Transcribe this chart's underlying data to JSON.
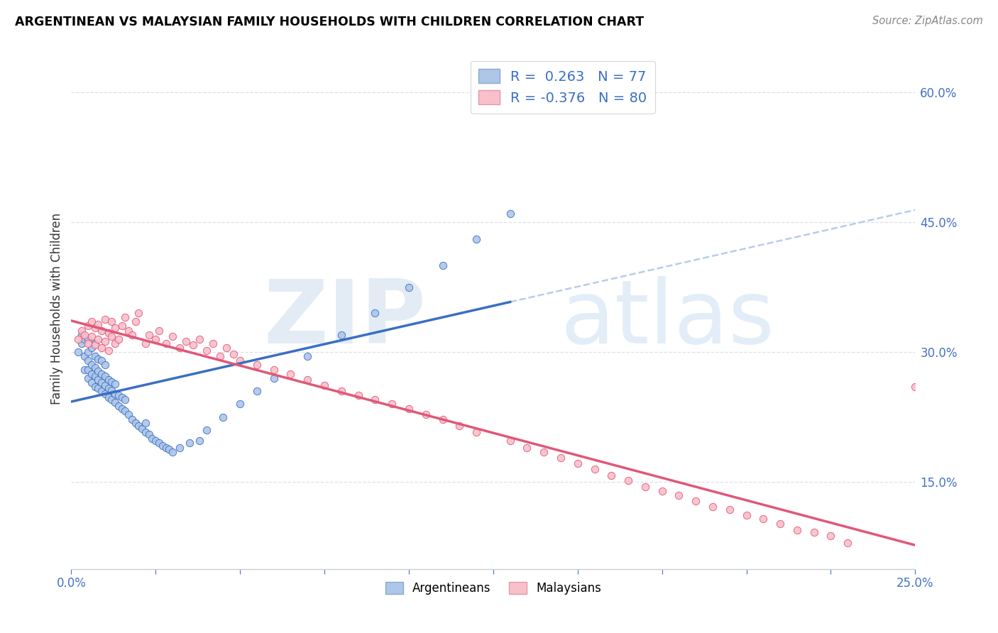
{
  "title": "ARGENTINEAN VS MALAYSIAN FAMILY HOUSEHOLDS WITH CHILDREN CORRELATION CHART",
  "source": "Source: ZipAtlas.com",
  "ylabel": "Family Households with Children",
  "xlim": [
    0.0,
    0.25
  ],
  "ylim": [
    0.05,
    0.65
  ],
  "R_argentinean": 0.263,
  "N_argentinean": 77,
  "R_malaysian": -0.376,
  "N_malaysian": 80,
  "color_argentinean": "#aec6e8",
  "color_malaysian": "#f9bfca",
  "line_color_argentinean": "#3a6fc4",
  "line_color_malaysian": "#e05878",
  "dashed_color": "#9bb8d8",
  "watermark_zip": "ZIP",
  "watermark_atlas": "atlas",
  "argentinean_x": [
    0.002,
    0.003,
    0.003,
    0.004,
    0.004,
    0.004,
    0.005,
    0.005,
    0.005,
    0.005,
    0.005,
    0.006,
    0.006,
    0.006,
    0.006,
    0.007,
    0.007,
    0.007,
    0.007,
    0.007,
    0.008,
    0.008,
    0.008,
    0.008,
    0.009,
    0.009,
    0.009,
    0.009,
    0.01,
    0.01,
    0.01,
    0.01,
    0.011,
    0.011,
    0.011,
    0.012,
    0.012,
    0.012,
    0.013,
    0.013,
    0.013,
    0.014,
    0.014,
    0.015,
    0.015,
    0.016,
    0.016,
    0.017,
    0.018,
    0.019,
    0.02,
    0.021,
    0.022,
    0.022,
    0.023,
    0.024,
    0.025,
    0.026,
    0.027,
    0.028,
    0.029,
    0.03,
    0.032,
    0.035,
    0.038,
    0.04,
    0.045,
    0.05,
    0.055,
    0.06,
    0.07,
    0.08,
    0.09,
    0.1,
    0.11,
    0.12,
    0.13
  ],
  "argentinean_y": [
    0.3,
    0.31,
    0.32,
    0.28,
    0.295,
    0.315,
    0.27,
    0.28,
    0.29,
    0.3,
    0.315,
    0.265,
    0.275,
    0.285,
    0.305,
    0.26,
    0.272,
    0.282,
    0.295,
    0.31,
    0.258,
    0.268,
    0.278,
    0.292,
    0.255,
    0.265,
    0.275,
    0.29,
    0.252,
    0.262,
    0.272,
    0.285,
    0.248,
    0.258,
    0.268,
    0.245,
    0.256,
    0.266,
    0.242,
    0.252,
    0.263,
    0.238,
    0.25,
    0.235,
    0.248,
    0.232,
    0.245,
    0.228,
    0.222,
    0.218,
    0.215,
    0.212,
    0.208,
    0.218,
    0.205,
    0.2,
    0.198,
    0.195,
    0.192,
    0.19,
    0.188,
    0.185,
    0.19,
    0.195,
    0.198,
    0.21,
    0.225,
    0.24,
    0.255,
    0.27,
    0.295,
    0.32,
    0.345,
    0.375,
    0.4,
    0.43,
    0.46
  ],
  "malaysian_x": [
    0.002,
    0.003,
    0.004,
    0.005,
    0.005,
    0.006,
    0.006,
    0.007,
    0.007,
    0.008,
    0.008,
    0.009,
    0.009,
    0.01,
    0.01,
    0.011,
    0.011,
    0.012,
    0.012,
    0.013,
    0.013,
    0.014,
    0.015,
    0.016,
    0.017,
    0.018,
    0.019,
    0.02,
    0.022,
    0.023,
    0.025,
    0.026,
    0.028,
    0.03,
    0.032,
    0.034,
    0.036,
    0.038,
    0.04,
    0.042,
    0.044,
    0.046,
    0.048,
    0.05,
    0.055,
    0.06,
    0.065,
    0.07,
    0.075,
    0.08,
    0.085,
    0.09,
    0.095,
    0.1,
    0.105,
    0.11,
    0.115,
    0.12,
    0.13,
    0.135,
    0.14,
    0.145,
    0.15,
    0.155,
    0.16,
    0.165,
    0.17,
    0.175,
    0.18,
    0.185,
    0.19,
    0.195,
    0.2,
    0.205,
    0.21,
    0.215,
    0.22,
    0.225,
    0.23,
    0.25
  ],
  "malaysian_y": [
    0.315,
    0.325,
    0.32,
    0.33,
    0.31,
    0.335,
    0.318,
    0.328,
    0.308,
    0.332,
    0.315,
    0.325,
    0.305,
    0.338,
    0.312,
    0.322,
    0.302,
    0.335,
    0.318,
    0.328,
    0.31,
    0.315,
    0.33,
    0.34,
    0.325,
    0.32,
    0.335,
    0.345,
    0.31,
    0.32,
    0.315,
    0.325,
    0.31,
    0.318,
    0.305,
    0.312,
    0.308,
    0.315,
    0.302,
    0.31,
    0.295,
    0.305,
    0.298,
    0.29,
    0.285,
    0.28,
    0.275,
    0.268,
    0.262,
    0.255,
    0.25,
    0.245,
    0.24,
    0.235,
    0.228,
    0.222,
    0.215,
    0.208,
    0.198,
    0.19,
    0.185,
    0.178,
    0.172,
    0.165,
    0.158,
    0.152,
    0.145,
    0.14,
    0.135,
    0.128,
    0.122,
    0.118,
    0.112,
    0.108,
    0.102,
    0.095,
    0.092,
    0.088,
    0.08,
    0.26
  ]
}
